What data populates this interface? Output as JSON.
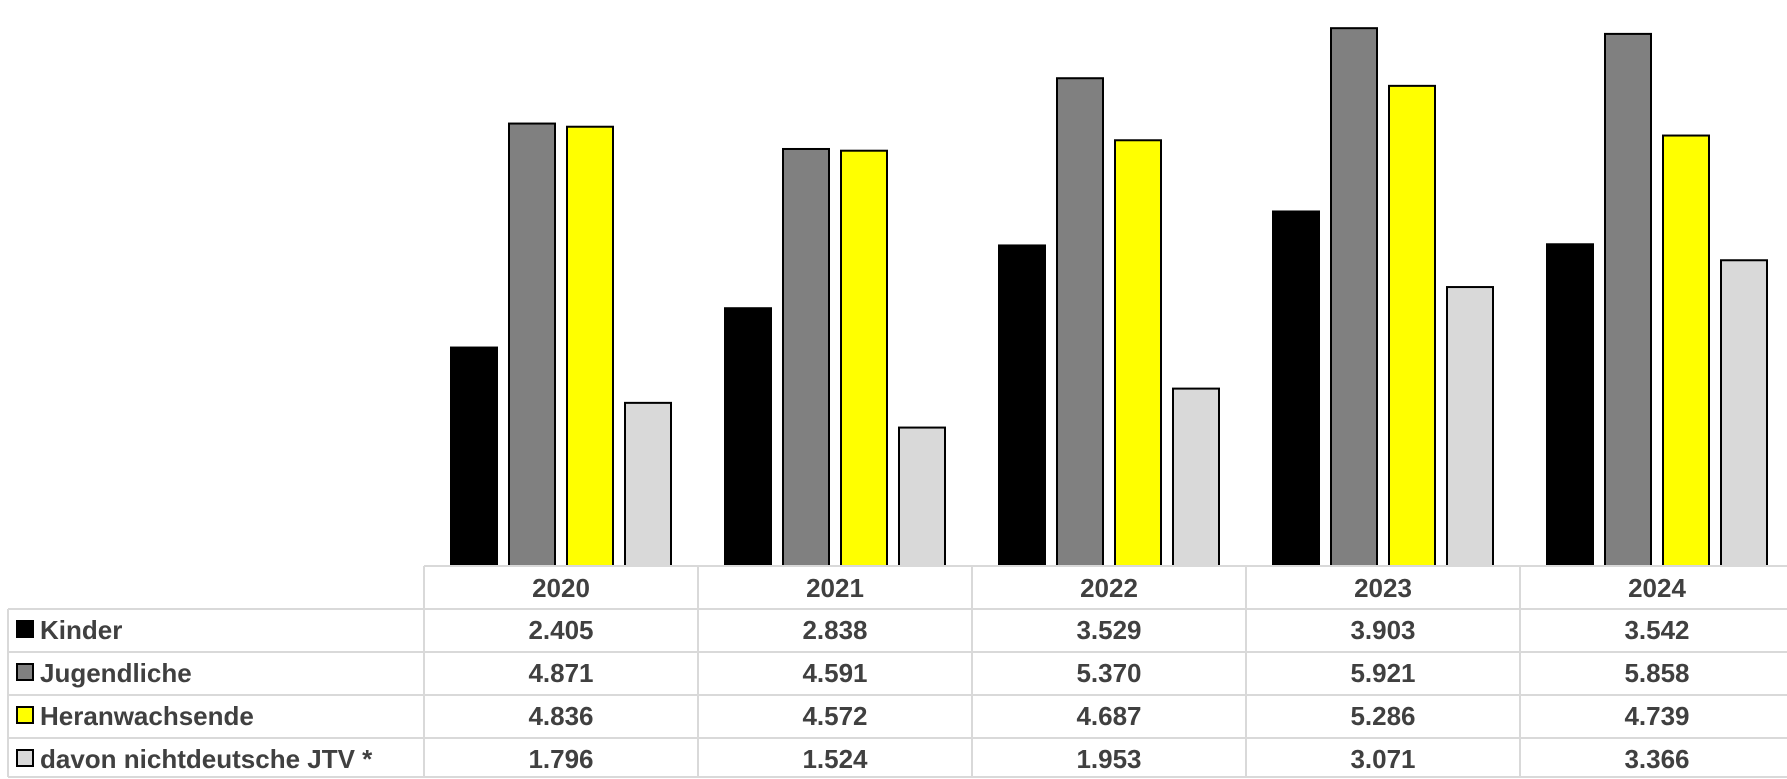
{
  "chart_data": {
    "type": "bar",
    "categories": [
      "2020",
      "2021",
      "2022",
      "2023",
      "2024"
    ],
    "series": [
      {
        "name": "Kinder",
        "color": "#000000",
        "values": [
          2405,
          2838,
          3529,
          3903,
          3542
        ]
      },
      {
        "name": "Jugendliche",
        "color": "#808080",
        "values": [
          4871,
          4591,
          5370,
          5921,
          5858
        ]
      },
      {
        "name": "Heranwachsende",
        "color": "#ffff00",
        "values": [
          4836,
          4572,
          4687,
          5286,
          4739
        ]
      },
      {
        "name": "davon nichtdeutsche JTV *",
        "color": "#d9d9d9",
        "values": [
          1796,
          1524,
          1953,
          3071,
          3366
        ]
      }
    ],
    "table": {
      "rows": [
        [
          "2.405",
          "2.838",
          "3.529",
          "3.903",
          "3.542"
        ],
        [
          "4.871",
          "4.591",
          "5.370",
          "5.921",
          "5.858"
        ],
        [
          "4.836",
          "4.572",
          "4.687",
          "5.286",
          "4.739"
        ],
        [
          "1.796",
          "1.524",
          "1.953",
          "3.071",
          "3.366"
        ]
      ]
    },
    "title": "",
    "xlabel": "",
    "ylabel": "",
    "ylim": [
      0,
      6000
    ],
    "grid": false,
    "legend": "data-table-left"
  }
}
